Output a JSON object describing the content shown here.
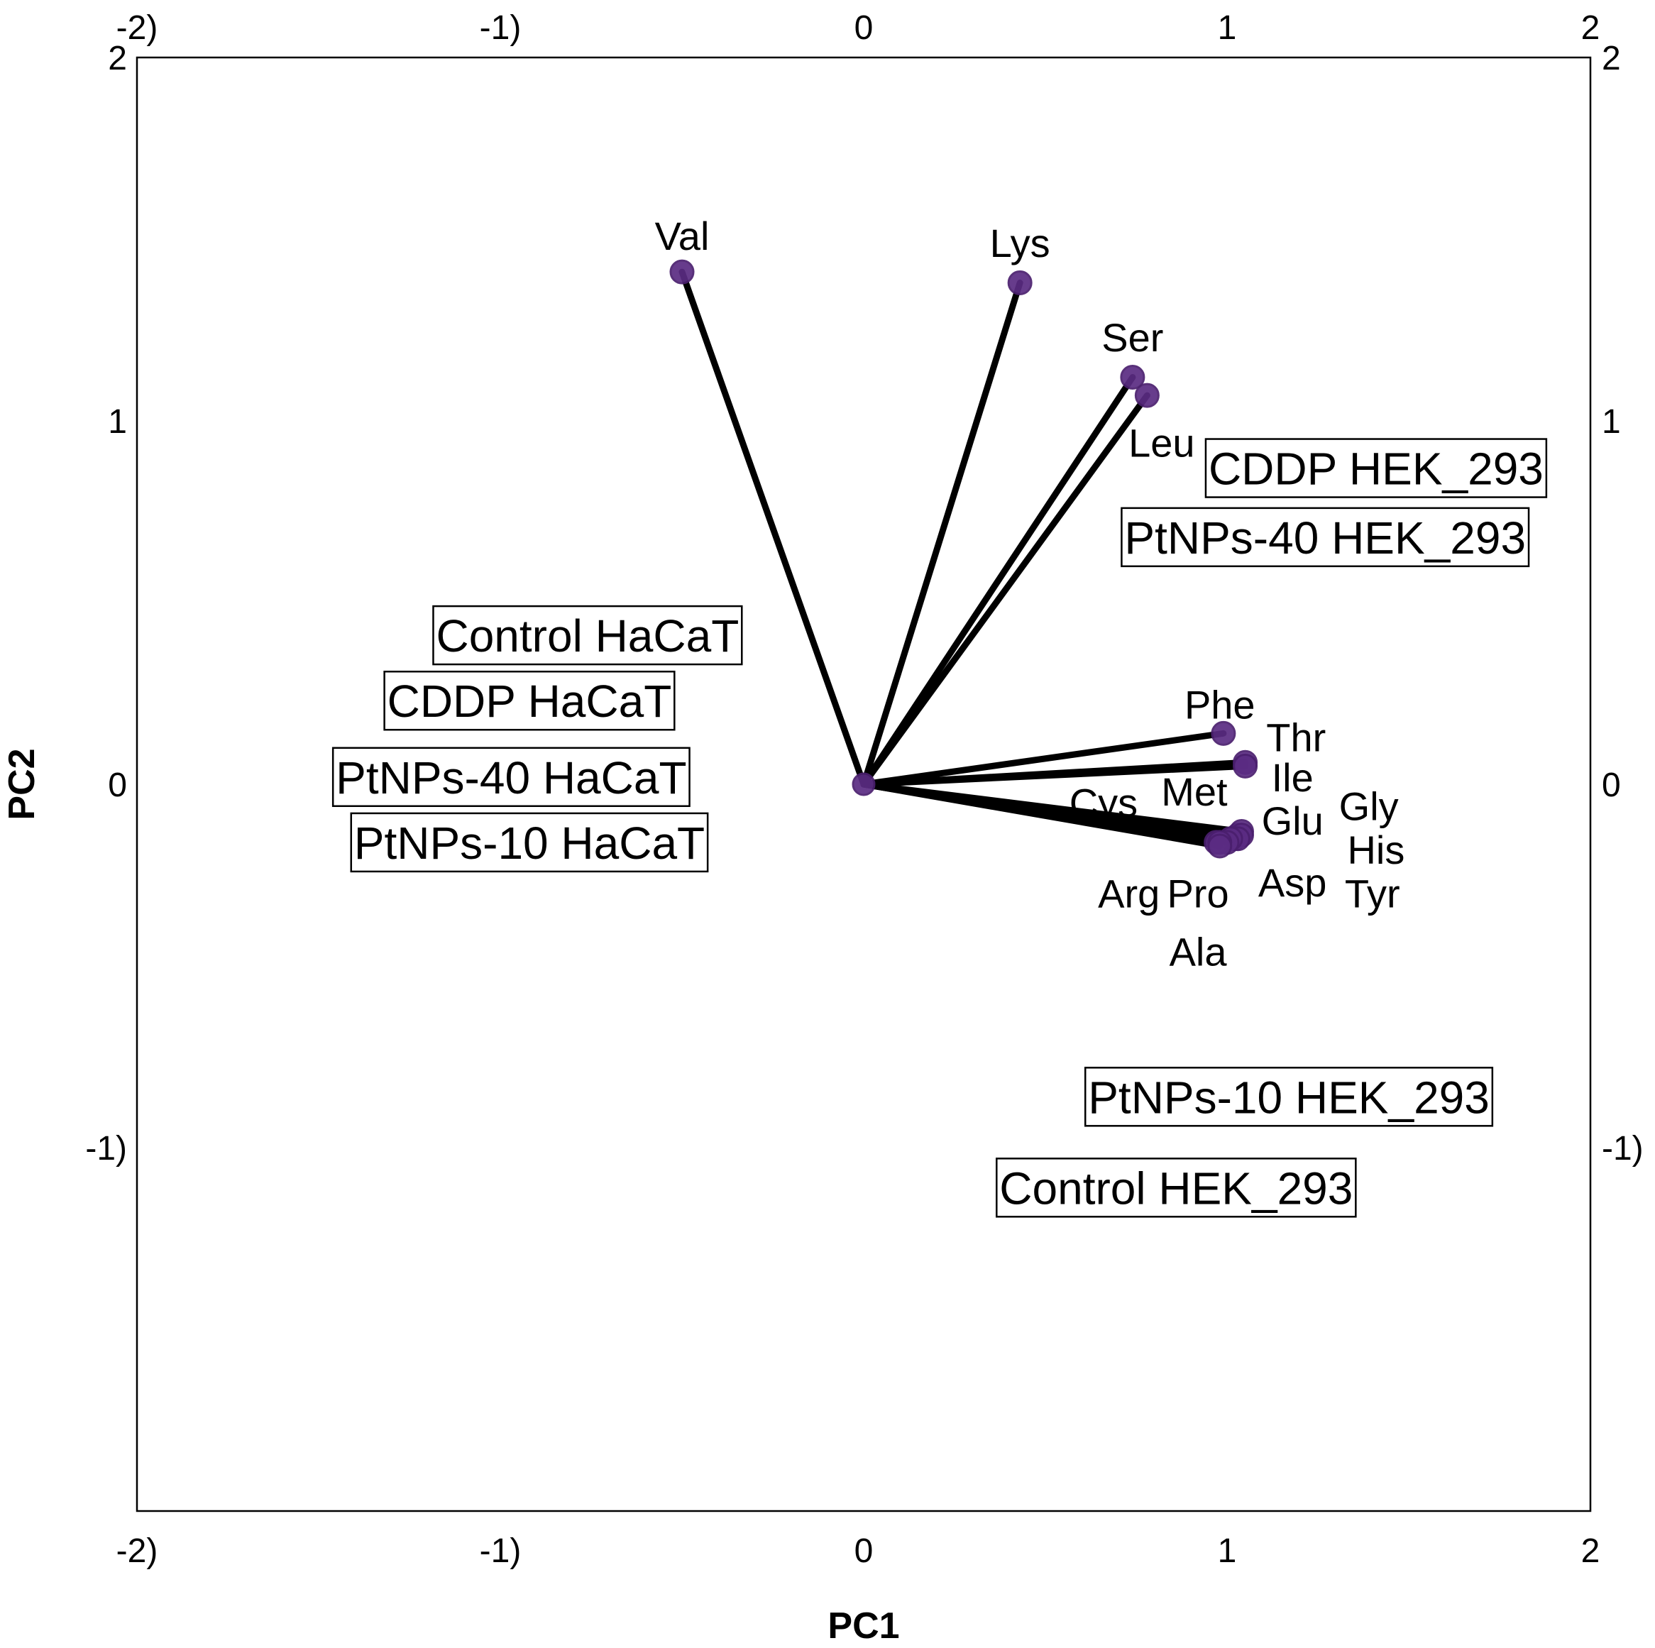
{
  "chart_data": {
    "type": "scatter",
    "subtype": "biplot",
    "xlabel": "PC1",
    "ylabel": "PC2",
    "xlim": [
      -2,
      2
    ],
    "ylim": [
      -2,
      2
    ],
    "x_ticks": [
      {
        "value": -2,
        "label": "-2)"
      },
      {
        "value": -1,
        "label": "-1)"
      },
      {
        "value": 0,
        "label": "0"
      },
      {
        "value": 1,
        "label": "1"
      },
      {
        "value": 2,
        "label": "2"
      }
    ],
    "y_ticks": [
      {
        "value": -1,
        "label": "-1)"
      },
      {
        "value": 0,
        "label": "0"
      },
      {
        "value": 1,
        "label": "1"
      },
      {
        "value": 2,
        "label": "2"
      }
    ],
    "grid": false,
    "colors": {
      "point": "#5b2c83",
      "vector": "#000000"
    },
    "origin": {
      "x": 0,
      "y": 0
    },
    "variables": [
      {
        "name": "Val",
        "x": -0.5,
        "y": 1.41,
        "lx": -0.5,
        "ly": 1.51
      },
      {
        "name": "Lys",
        "x": 0.43,
        "y": 1.38,
        "lx": 0.43,
        "ly": 1.49
      },
      {
        "name": "Ser",
        "x": 0.74,
        "y": 1.12,
        "lx": 0.74,
        "ly": 1.23
      },
      {
        "name": "Leu",
        "x": 0.78,
        "y": 1.07,
        "lx": 0.82,
        "ly": 0.94
      },
      {
        "name": "Phe",
        "x": 0.99,
        "y": 0.14,
        "lx": 0.98,
        "ly": 0.22
      },
      {
        "name": "Thr",
        "x": 1.05,
        "y": 0.06,
        "lx": 1.19,
        "ly": 0.13
      },
      {
        "name": "Ile",
        "x": 1.05,
        "y": 0.05,
        "lx": 1.18,
        "ly": 0.02
      },
      {
        "name": "Met",
        "x": 1.03,
        "y": -0.14,
        "lx": 0.91,
        "ly": -0.02
      },
      {
        "name": "Cys",
        "x": 1.02,
        "y": -0.15,
        "lx": 0.66,
        "ly": -0.05
      },
      {
        "name": "Glu",
        "x": 1.04,
        "y": -0.13,
        "lx": 1.18,
        "ly": -0.1
      },
      {
        "name": "Gly",
        "x": 1.04,
        "y": -0.14,
        "lx": 1.39,
        "ly": -0.06
      },
      {
        "name": "His",
        "x": 1.03,
        "y": -0.15,
        "lx": 1.41,
        "ly": -0.18
      },
      {
        "name": "Asp",
        "x": 1.01,
        "y": -0.15,
        "lx": 1.18,
        "ly": -0.27
      },
      {
        "name": "Tyr",
        "x": 1.0,
        "y": -0.16,
        "lx": 1.4,
        "ly": -0.3
      },
      {
        "name": "Arg",
        "x": 0.97,
        "y": -0.16,
        "lx": 0.73,
        "ly": -0.3
      },
      {
        "name": "Pro",
        "x": 0.98,
        "y": -0.16,
        "lx": 0.92,
        "ly": -0.3
      },
      {
        "name": "Ala",
        "x": 0.98,
        "y": -0.17,
        "lx": 0.92,
        "ly": -0.46
      }
    ],
    "samples": [
      {
        "label": "CDDP HEK_293",
        "x": 1.41,
        "y": 0.87
      },
      {
        "label": "PtNPs-40 HEK_293",
        "x": 1.27,
        "y": 0.68
      },
      {
        "label": "Control HaCaT",
        "x": -0.76,
        "y": 0.41
      },
      {
        "label": "CDDP HaCaT",
        "x": -0.92,
        "y": 0.23
      },
      {
        "label": "PtNPs-40 HaCaT",
        "x": -0.97,
        "y": 0.02
      },
      {
        "label": "PtNPs-10 HaCaT",
        "x": -0.92,
        "y": -0.16
      },
      {
        "label": "PtNPs-10 HEK_293",
        "x": 1.17,
        "y": -0.86
      },
      {
        "label": "Control HEK_293",
        "x": 0.86,
        "y": -1.11
      }
    ]
  }
}
